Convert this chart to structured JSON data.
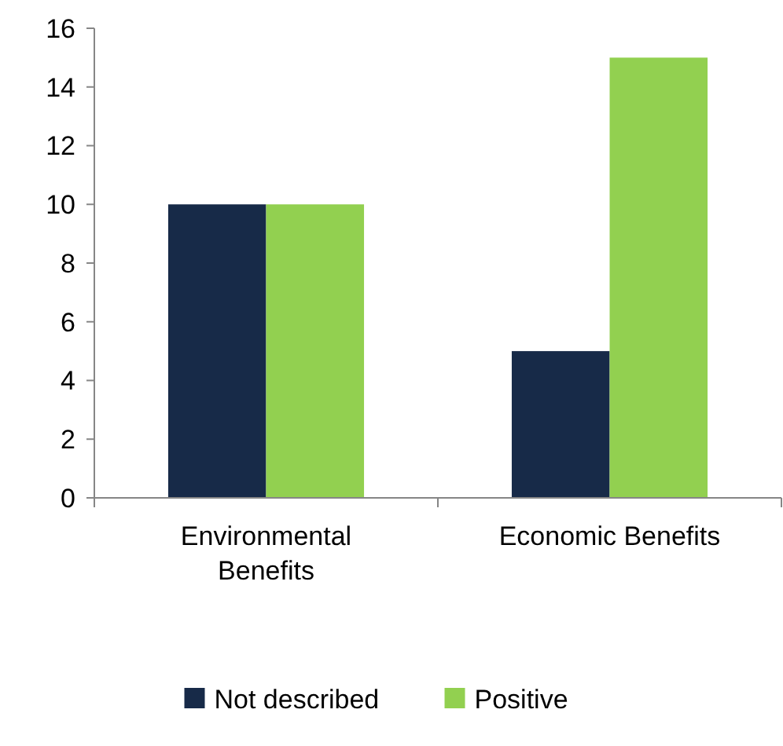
{
  "chart_data": {
    "type": "bar",
    "categories": [
      "Environmental Benefits",
      "Economic Benefits"
    ],
    "series": [
      {
        "name": "Not described",
        "color": "#172a48",
        "values": [
          10,
          5
        ]
      },
      {
        "name": "Positive",
        "color": "#92d050",
        "values": [
          10,
          15
        ]
      }
    ],
    "ylim": [
      0,
      16
    ],
    "yticks": [
      0,
      2,
      4,
      6,
      8,
      10,
      12,
      14,
      16
    ],
    "grid": false,
    "legend": "bottom"
  }
}
